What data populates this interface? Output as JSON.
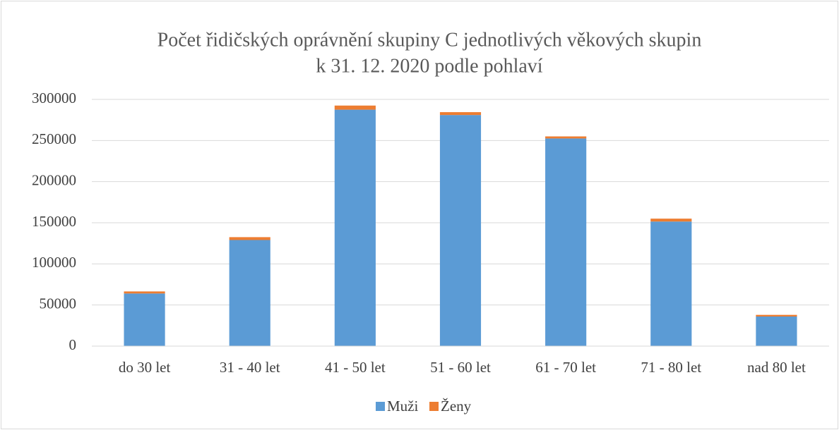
{
  "chart_data": {
    "type": "stacked_bar",
    "title": [
      "Počet řidičských oprávnění skupiny C jednotlivých věkových skupin",
      "k 31. 12. 2020 podle pohlaví"
    ],
    "categories": [
      "do 30 let",
      "31 - 40 let",
      "41 - 50 let",
      "51 - 60 let",
      "61 - 70 let",
      "71 - 80 let",
      "nad 80 let"
    ],
    "series": [
      {
        "name": "Muži",
        "color": "#5b9bd5",
        "values": [
          64000,
          129000,
          287500,
          281000,
          252500,
          151500,
          36000
        ]
      },
      {
        "name": "Ženy",
        "color": "#ed7d31",
        "values": [
          2500,
          3500,
          5000,
          3500,
          2500,
          3500,
          2000
        ]
      }
    ],
    "ylim": [
      0,
      300000
    ],
    "yticks": [
      0,
      50000,
      100000,
      150000,
      200000,
      250000,
      300000
    ],
    "grid": true,
    "legend": "bottom"
  }
}
